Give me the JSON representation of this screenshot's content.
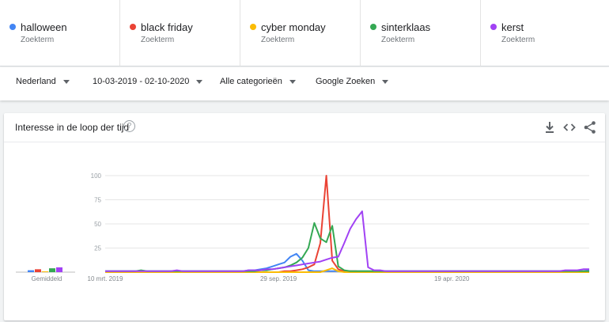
{
  "terms": [
    {
      "name": "halloween",
      "sub": "Zoekterm",
      "color": "#4285f4"
    },
    {
      "name": "black friday",
      "sub": "Zoekterm",
      "color": "#ea4335"
    },
    {
      "name": "cyber monday",
      "sub": "Zoekterm",
      "color": "#fbbc04"
    },
    {
      "name": "sinterklaas",
      "sub": "Zoekterm",
      "color": "#34a853"
    },
    {
      "name": "kerst",
      "sub": "Zoekterm",
      "color": "#a142f4"
    }
  ],
  "filters": {
    "region": "Nederland",
    "period": "10-03-2019 - 02-10-2020",
    "category": "Alle categorieën",
    "property": "Google Zoeken"
  },
  "card": {
    "title": "Interesse in de loop der tijd",
    "help_icon": "help-icon",
    "tools": [
      "download-icon",
      "embed-icon",
      "share-icon"
    ]
  },
  "chart_data": {
    "type": "line",
    "x": [
      "2019-03-10",
      "2019-03-17",
      "2019-03-24",
      "2019-03-31",
      "2019-04-07",
      "2019-04-14",
      "2019-04-21",
      "2019-04-28",
      "2019-05-05",
      "2019-05-12",
      "2019-05-19",
      "2019-05-26",
      "2019-06-02",
      "2019-06-09",
      "2019-06-16",
      "2019-06-23",
      "2019-06-30",
      "2019-07-07",
      "2019-07-14",
      "2019-07-21",
      "2019-07-28",
      "2019-08-04",
      "2019-08-11",
      "2019-08-18",
      "2019-08-25",
      "2019-09-01",
      "2019-09-08",
      "2019-09-15",
      "2019-09-22",
      "2019-09-29",
      "2019-10-06",
      "2019-10-13",
      "2019-10-20",
      "2019-10-27",
      "2019-11-03",
      "2019-11-10",
      "2019-11-17",
      "2019-11-24",
      "2019-12-01",
      "2019-12-08",
      "2019-12-15",
      "2019-12-22",
      "2019-12-29",
      "2020-01-05",
      "2020-01-12",
      "2020-01-19",
      "2020-01-26",
      "2020-02-02",
      "2020-02-09",
      "2020-02-16",
      "2020-02-23",
      "2020-03-01",
      "2020-03-08",
      "2020-03-15",
      "2020-03-22",
      "2020-03-29",
      "2020-04-05",
      "2020-04-12",
      "2020-04-19",
      "2020-04-26",
      "2020-05-03",
      "2020-05-10",
      "2020-05-17",
      "2020-05-24",
      "2020-05-31",
      "2020-06-07",
      "2020-06-14",
      "2020-06-21",
      "2020-06-28",
      "2020-07-05",
      "2020-07-12",
      "2020-07-19",
      "2020-07-26",
      "2020-08-02",
      "2020-08-09",
      "2020-08-16",
      "2020-08-23",
      "2020-08-30",
      "2020-09-06",
      "2020-09-13",
      "2020-09-20",
      "2020-09-27"
    ],
    "series": [
      {
        "name": "halloween",
        "color": "#4285f4",
        "values": [
          1,
          1,
          1,
          1,
          1,
          1,
          1,
          1,
          1,
          1,
          1,
          1,
          1,
          1,
          1,
          1,
          1,
          1,
          1,
          1,
          1,
          1,
          1,
          1,
          2,
          2,
          3,
          4,
          6,
          8,
          10,
          16,
          19,
          12,
          2,
          1,
          1,
          1,
          1,
          1,
          1,
          1,
          1,
          1,
          1,
          1,
          1,
          1,
          1,
          1,
          1,
          1,
          1,
          1,
          1,
          1,
          1,
          1,
          1,
          1,
          1,
          1,
          1,
          1,
          1,
          1,
          1,
          1,
          1,
          1,
          1,
          1,
          1,
          1,
          1,
          1,
          1,
          1,
          1,
          1,
          1,
          2
        ]
      },
      {
        "name": "black friday",
        "color": "#ea4335",
        "values": [
          0,
          0,
          0,
          0,
          0,
          0,
          0,
          0,
          0,
          0,
          0,
          0,
          0,
          0,
          0,
          0,
          0,
          0,
          0,
          0,
          0,
          0,
          0,
          0,
          0,
          0,
          0,
          0,
          0,
          0,
          1,
          1,
          2,
          3,
          5,
          8,
          30,
          100,
          12,
          3,
          1,
          1,
          1,
          0,
          0,
          0,
          0,
          0,
          0,
          0,
          0,
          0,
          0,
          0,
          0,
          0,
          0,
          0,
          0,
          0,
          0,
          0,
          0,
          0,
          0,
          0,
          0,
          0,
          0,
          0,
          0,
          0,
          0,
          0,
          0,
          0,
          0,
          0,
          0,
          0,
          0,
          0
        ]
      },
      {
        "name": "cyber monday",
        "color": "#fbbc04",
        "values": [
          0,
          0,
          0,
          0,
          0,
          0,
          0,
          0,
          0,
          0,
          0,
          0,
          0,
          0,
          0,
          0,
          0,
          0,
          0,
          0,
          0,
          0,
          0,
          0,
          0,
          0,
          0,
          0,
          0,
          0,
          0,
          0,
          0,
          0,
          0,
          0,
          0,
          2,
          4,
          1,
          0,
          0,
          0,
          0,
          0,
          0,
          0,
          0,
          0,
          0,
          0,
          0,
          0,
          0,
          0,
          0,
          0,
          0,
          0,
          0,
          0,
          0,
          0,
          0,
          0,
          0,
          0,
          0,
          0,
          0,
          0,
          0,
          0,
          0,
          0,
          0,
          0,
          0,
          0,
          0,
          0,
          0
        ]
      },
      {
        "name": "sinterklaas",
        "color": "#34a853",
        "values": [
          1,
          1,
          1,
          1,
          1,
          1,
          2,
          1,
          1,
          1,
          1,
          1,
          1,
          1,
          1,
          1,
          1,
          1,
          1,
          1,
          1,
          1,
          1,
          1,
          1,
          1,
          2,
          2,
          3,
          4,
          5,
          7,
          10,
          15,
          25,
          51,
          35,
          31,
          48,
          6,
          2,
          1,
          1,
          1,
          1,
          1,
          1,
          1,
          1,
          1,
          1,
          1,
          1,
          1,
          1,
          1,
          1,
          1,
          1,
          1,
          1,
          1,
          1,
          1,
          1,
          1,
          1,
          1,
          1,
          1,
          1,
          1,
          1,
          1,
          1,
          1,
          1,
          1,
          1,
          1,
          1,
          1
        ]
      },
      {
        "name": "kerst",
        "color": "#a142f4",
        "values": [
          1,
          1,
          1,
          1,
          1,
          1,
          1,
          1,
          1,
          1,
          1,
          1,
          2,
          1,
          1,
          1,
          1,
          1,
          1,
          1,
          1,
          1,
          1,
          1,
          2,
          2,
          2,
          3,
          3,
          4,
          5,
          6,
          7,
          8,
          9,
          10,
          11,
          13,
          15,
          16,
          30,
          45,
          55,
          63,
          5,
          2,
          2,
          1,
          1,
          1,
          1,
          1,
          1,
          1,
          1,
          1,
          1,
          1,
          1,
          1,
          1,
          1,
          1,
          1,
          1,
          1,
          1,
          1,
          1,
          1,
          1,
          1,
          1,
          1,
          1,
          1,
          1,
          2,
          2,
          2,
          3,
          3
        ]
      }
    ],
    "averages": [
      2,
      3,
      0,
      4,
      5
    ],
    "average_label": "Gemiddeld",
    "yticks": [
      25,
      50,
      75,
      100
    ],
    "xticks": [
      {
        "date": "2019-03-10",
        "label": "10 mrt. 2019"
      },
      {
        "date": "2019-09-29",
        "label": "29 sep. 2019"
      },
      {
        "date": "2020-04-19",
        "label": "19 apr. 2020"
      }
    ],
    "ylim": [
      0,
      100
    ],
    "grid": true
  }
}
